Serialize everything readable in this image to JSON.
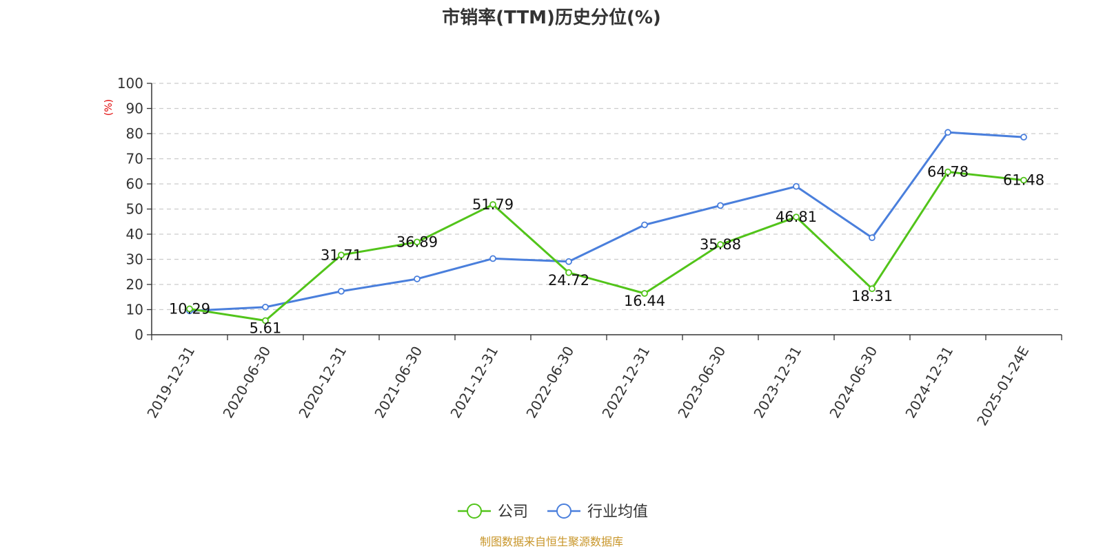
{
  "chart_data": {
    "type": "line",
    "title": "市销率(TTM)历史分位(%)",
    "ylabel": "(%)",
    "ylim": [
      0,
      100
    ],
    "ytick_step": 10,
    "grid": true,
    "legend_position": "bottom-center",
    "categories": [
      "2019-12-31",
      "2020-06-30",
      "2020-12-31",
      "2021-06-30",
      "2021-12-31",
      "2022-06-30",
      "2022-12-31",
      "2023-06-30",
      "2023-12-31",
      "2024-06-30",
      "2024-12-31",
      "2025-01-24E"
    ],
    "series": [
      {
        "name": "公司",
        "color": "#52c41a",
        "values": [
          10.29,
          5.61,
          31.71,
          36.89,
          51.79,
          24.72,
          16.44,
          35.88,
          46.81,
          18.31,
          64.78,
          61.48
        ],
        "data_labels": [
          "10.29",
          "5.61",
          "31.71",
          "36.89",
          "51.79",
          "24.72",
          "16.44",
          "35.88",
          "46.81",
          "18.31",
          "64.78",
          "61.48"
        ]
      },
      {
        "name": "行业均值",
        "color": "#4a7fdc",
        "values": [
          9.5,
          11.0,
          17.3,
          22.2,
          30.3,
          29.1,
          43.7,
          51.4,
          59.0,
          38.6,
          80.5,
          78.6
        ]
      }
    ],
    "source_note": "制图数据来自恒生聚源数据库",
    "colors": {
      "unit_label": "#e00000",
      "source_note": "#c8962a",
      "grid": "#cccccc",
      "axis": "#333333"
    }
  }
}
